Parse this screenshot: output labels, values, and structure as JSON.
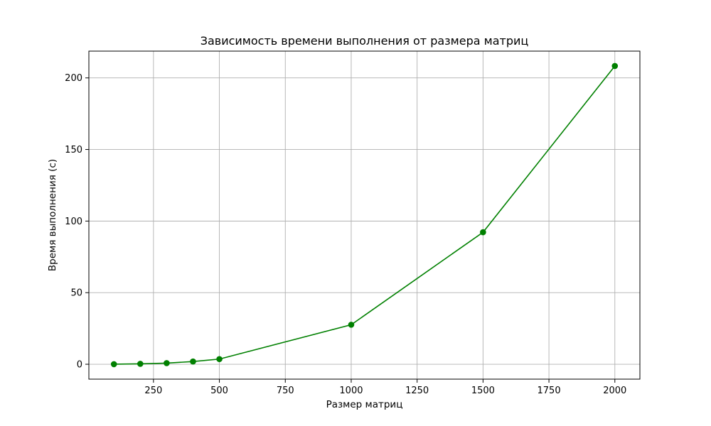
{
  "chart_data": {
    "type": "line",
    "title": "Зависимость времени выполнения от размера матриц",
    "xlabel": "Размер матриц",
    "ylabel": "Время выполнения (с)",
    "x": [
      100,
      200,
      300,
      400,
      500,
      1000,
      1500,
      2000
    ],
    "series": [
      {
        "values": [
          0.05,
          0.3,
          0.8,
          1.9,
          3.6,
          27.6,
          92.2,
          208.3
        ],
        "color": "#008000",
        "marker": "circle"
      }
    ],
    "xlim": [
      5,
      2095
    ],
    "ylim": [
      -10.4,
      218.7
    ],
    "xticks": [
      250,
      500,
      750,
      1000,
      1250,
      1500,
      1750,
      2000
    ],
    "yticks": [
      0,
      50,
      100,
      150,
      200
    ],
    "grid": true
  }
}
